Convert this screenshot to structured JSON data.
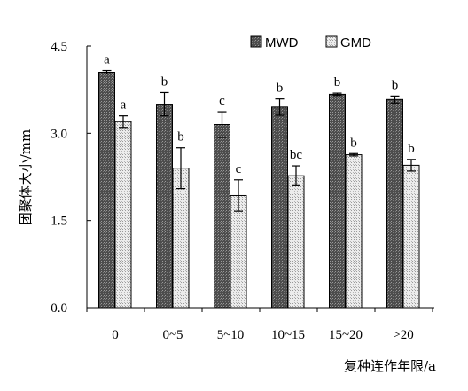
{
  "chart_data": {
    "type": "bar",
    "title": "",
    "xlabel": "复种连作年限/a",
    "ylabel": "团聚体大小/mm",
    "ylim": [
      0,
      4.5
    ],
    "yticks": [
      "0.0",
      "1.5",
      "3.0",
      "4.5"
    ],
    "categories": [
      "0",
      "0~5",
      "5~10",
      "10~15",
      "15~20",
      ">20"
    ],
    "legend_position": "top-right",
    "grid": false,
    "series": [
      {
        "name": "MWD",
        "values": [
          4.05,
          3.5,
          3.15,
          3.45,
          3.67,
          3.58
        ],
        "errors": [
          0.03,
          0.2,
          0.22,
          0.14,
          0.02,
          0.06
        ],
        "labels": [
          "a",
          "b",
          "c",
          "b",
          "b",
          "b"
        ],
        "color": "#555555"
      },
      {
        "name": "GMD",
        "values": [
          3.2,
          2.4,
          1.93,
          2.27,
          2.63,
          2.45
        ],
        "errors": [
          0.1,
          0.35,
          0.27,
          0.17,
          0.02,
          0.1
        ],
        "labels": [
          "a",
          "b",
          "c",
          "bc",
          "b",
          "b"
        ],
        "color": "#d0d0d0"
      }
    ]
  }
}
